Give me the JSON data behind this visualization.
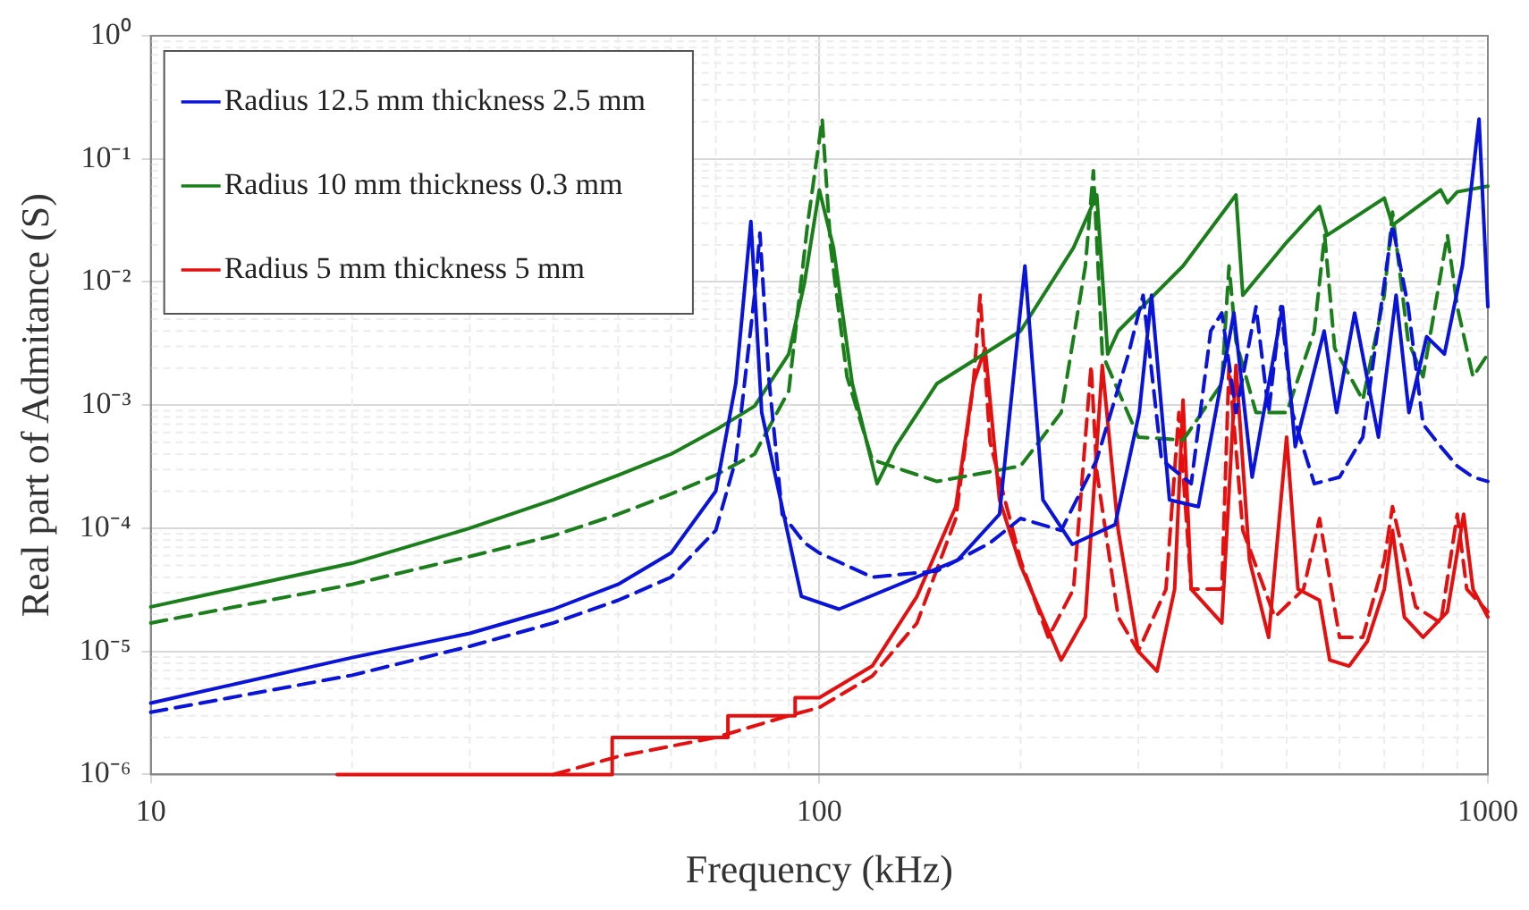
{
  "chart_data": {
    "type": "line",
    "xlabel": "Frequency (kHz)",
    "ylabel": "Real part of Admitance (S)",
    "log": "xy",
    "grid": true,
    "legend": "top left",
    "marker": "none",
    "xlim": [
      10,
      1000
    ],
    "xticks": [
      10,
      100,
      1000
    ],
    "ylim": [
      1e-06,
      1
    ],
    "yticks": [
      {
        "value": 1e-06,
        "label": "10⁻⁶"
      },
      {
        "value": 1e-05,
        "label": "10⁻⁵"
      },
      {
        "value": 0.0001,
        "label": "10⁻⁴"
      },
      {
        "value": 0.001,
        "label": "10⁻³"
      },
      {
        "value": 0.01,
        "label": "10⁻²"
      },
      {
        "value": 0.1,
        "label": "10⁻¹"
      },
      {
        "value": 1,
        "label": "10⁰"
      }
    ],
    "series": [
      {
        "name": "Radius 12.5 mm thickness 2.5 mm",
        "color": "#0a14d8",
        "line_style": "solid",
        "x": [
          10,
          20,
          30,
          40,
          50,
          60,
          70,
          75,
          79,
          82,
          94,
          107,
          161,
          186,
          203,
          216,
          239,
          277,
          301,
          314,
          334,
          369,
          417,
          444,
          493,
          515,
          569,
          594,
          632,
          686,
          729,
          762,
          810,
          861,
          916,
          970,
          1000
        ],
        "values": [
          3.8e-06,
          8.9e-06,
          1.4e-05,
          2.2e-05,
          3.5e-05,
          6.3e-05,
          0.0002,
          0.0015,
          0.031,
          0.00087,
          2.8e-05,
          2.2e-05,
          5.5e-05,
          0.00013,
          0.0135,
          0.00017,
          7.4e-05,
          0.000107,
          0.00087,
          0.0078,
          0.00017,
          0.00015,
          0.0056,
          0.00026,
          0.0063,
          0.00046,
          0.004,
          0.00087,
          0.0056,
          0.00055,
          0.0078,
          0.00087,
          0.0036,
          0.0026,
          0.0135,
          0.21,
          0.0063
        ]
      },
      {
        "color": "#0a14d8",
        "line_style": "dashed",
        "x": [
          10,
          20,
          30,
          40,
          50,
          60,
          70,
          75,
          80,
          81.5,
          84,
          88,
          95,
          100,
          120,
          150,
          180,
          200,
          230,
          260,
          290,
          305,
          325,
          360,
          385,
          400,
          420,
          450,
          470,
          490,
          510,
          550,
          600,
          650,
          700,
          720,
          760,
          800,
          850,
          900,
          950,
          1000
        ],
        "values": [
          3.2e-06,
          6.4e-06,
          1.1e-05,
          1.7e-05,
          2.6e-05,
          4e-05,
          9.6e-05,
          0.00036,
          0.0078,
          0.025,
          0.0017,
          0.00013,
          7.6e-05,
          6.3e-05,
          4e-05,
          4.5e-05,
          7.6e-05,
          0.00012,
          9.6e-05,
          0.00036,
          0.0026,
          0.0078,
          0.00036,
          0.00023,
          0.004,
          0.0056,
          0.00087,
          0.0063,
          0.00087,
          0.0063,
          0.00087,
          0.00023,
          0.00026,
          0.00055,
          0.0098,
          0.029,
          0.0063,
          0.0007,
          0.00046,
          0.00032,
          0.00026,
          0.00024
        ]
      },
      {
        "name": "Radius 10 mm thickness 0.3 mm",
        "color": "#1a7f1a",
        "line_style": "solid",
        "x": [
          10,
          20,
          30,
          40,
          50,
          60,
          70,
          80,
          90,
          95,
          100,
          105,
          112,
          122,
          130,
          150,
          200,
          240,
          260,
          270,
          280,
          350,
          420,
          430,
          500,
          560,
          575,
          700,
          720,
          850,
          870,
          900,
          1000
        ],
        "values": [
          2.3e-05,
          5.2e-05,
          0.0001,
          0.00017,
          0.00027,
          0.0004,
          0.00063,
          0.00098,
          0.0026,
          0.0098,
          0.056,
          0.019,
          0.0015,
          0.00023,
          0.00046,
          0.0015,
          0.004,
          0.019,
          0.051,
          0.0026,
          0.004,
          0.0135,
          0.051,
          0.0078,
          0.021,
          0.041,
          0.024,
          0.048,
          0.029,
          0.056,
          0.044,
          0.054,
          0.06
        ]
      },
      {
        "color": "#1a7f1a",
        "line_style": "dashed",
        "x": [
          10,
          20,
          30,
          40,
          50,
          60,
          70,
          80,
          90,
          96,
          101,
          104,
          110,
          120,
          150,
          200,
          230,
          250,
          257,
          265,
          300,
          350,
          400,
          410,
          420,
          450,
          500,
          550,
          570,
          590,
          650,
          700,
          720,
          760,
          800,
          870,
          900,
          950,
          1000
        ],
        "values": [
          1.7e-05,
          3.5e-05,
          5.9e-05,
          8.7e-05,
          0.00013,
          0.00019,
          0.00027,
          0.0004,
          0.0013,
          0.029,
          0.21,
          0.019,
          0.0017,
          0.00036,
          0.00024,
          0.00032,
          0.00087,
          0.0135,
          0.08,
          0.0026,
          0.00055,
          0.00052,
          0.0015,
          0.0135,
          0.0033,
          0.00087,
          0.00087,
          0.004,
          0.024,
          0.0029,
          0.0011,
          0.0078,
          0.037,
          0.0033,
          0.0017,
          0.024,
          0.0063,
          0.0017,
          0.0026
        ]
      },
      {
        "name": "Radius 5 mm thickness 5 mm",
        "color": "#e41010",
        "line_style": "solid",
        "x": [
          19,
          49,
          49,
          73,
          73,
          92,
          92,
          100,
          120,
          140,
          160,
          170,
          177,
          186,
          200,
          230,
          250,
          265,
          280,
          300,
          320,
          340,
          350,
          360,
          400,
          420,
          440,
          470,
          500,
          520,
          560,
          580,
          620,
          660,
          700,
          720,
          750,
          800,
          870,
          920,
          950,
          1000
        ],
        "values": [
          1e-06,
          1e-06,
          2e-06,
          2e-06,
          3e-06,
          3e-06,
          4.2e-06,
          4.2e-06,
          7.6e-06,
          2.8e-05,
          0.00015,
          0.0015,
          0.0029,
          0.00017,
          5e-05,
          8.5e-06,
          1.9e-05,
          0.0021,
          9.6e-05,
          1e-05,
          6.9e-06,
          3.2e-05,
          0.0011,
          3.2e-05,
          1.7e-05,
          0.0021,
          5.5e-05,
          1.3e-05,
          0.00055,
          3.2e-05,
          2.6e-05,
          8.5e-06,
          7.6e-06,
          1.2e-05,
          3.2e-05,
          9.6e-05,
          1.9e-05,
          1.3e-05,
          2.1e-05,
          0.00013,
          3.2e-05,
          1.9e-05
        ]
      },
      {
        "color": "#e41010",
        "line_style": "dashed",
        "x": [
          40,
          50,
          70,
          90,
          100,
          120,
          140,
          160,
          170,
          174,
          180,
          200,
          220,
          240,
          255,
          260,
          280,
          300,
          330,
          345,
          360,
          400,
          410,
          430,
          480,
          530,
          560,
          600,
          650,
          700,
          720,
          780,
          850,
          900,
          930,
          1000
        ],
        "values": [
          1e-06,
          1.4e-06,
          2e-06,
          3e-06,
          3.5e-06,
          6.3e-06,
          1.7e-05,
          0.00012,
          0.0015,
          0.0078,
          0.0005,
          5.5e-05,
          1.3e-05,
          3.2e-05,
          0.0021,
          0.00029,
          1.9e-05,
          1e-05,
          3.2e-05,
          0.00087,
          3.2e-05,
          3.2e-05,
          0.0021,
          9.6e-05,
          1.9e-05,
          3.2e-05,
          0.00012,
          1.3e-05,
          1.3e-05,
          5.5e-05,
          0.00015,
          2.3e-05,
          1.7e-05,
          0.00013,
          3.2e-05,
          2.1e-05
        ]
      }
    ]
  }
}
